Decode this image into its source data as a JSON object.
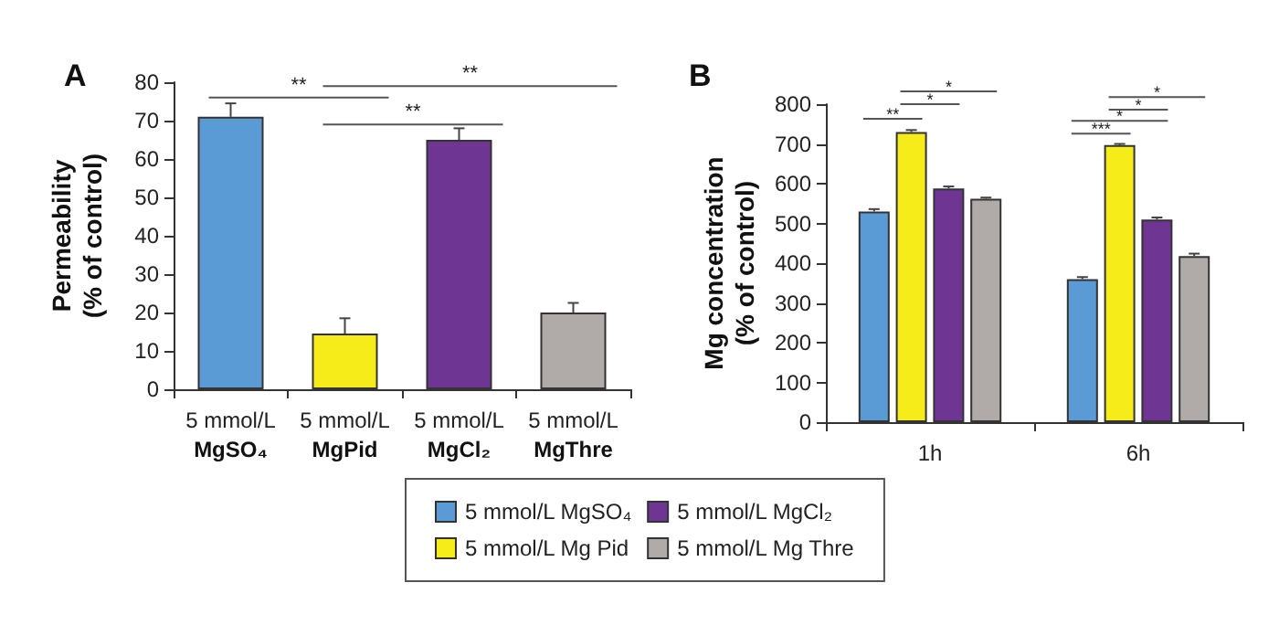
{
  "chart_data": [
    {
      "type": "bar",
      "title": "A",
      "ylabel": "Permeability\n(% of control)",
      "categories": [
        "5 mmol/L\nMgSO₄",
        "5 mmol/L\nMgPid",
        "5 mmol/L\nMgCl₂",
        "5 mmol/L\nMgThre"
      ],
      "values": [
        71,
        14.5,
        65,
        20
      ],
      "errors": [
        3.5,
        4,
        3,
        2.5
      ],
      "colors": [
        "#5b9bd5",
        "#f5ec1a",
        "#6f3593",
        "#b0aaa8"
      ],
      "ylim": [
        0,
        80
      ],
      "yticks": [
        0,
        10,
        20,
        30,
        40,
        50,
        60,
        70,
        80
      ],
      "grid": false,
      "annotations": [
        "**",
        "**",
        "**"
      ]
    },
    {
      "type": "bar",
      "title": "B",
      "ylabel": "Mg concentration\n(% of control)",
      "categories": [
        "1h",
        "6h"
      ],
      "series": [
        {
          "name": "5 mmol/L MgSO₄",
          "color": "#5b9bd5",
          "values": [
            530,
            360
          ],
          "errors": [
            6,
            5
          ]
        },
        {
          "name": "5 mmol/L Mg Pid",
          "color": "#f5ec1a",
          "values": [
            730,
            697
          ],
          "errors": [
            5,
            3
          ]
        },
        {
          "name": "5 mmol/L MgCl₂",
          "color": "#6f3593",
          "values": [
            588,
            510
          ],
          "errors": [
            5,
            5
          ]
        },
        {
          "name": "5 mmol/L Mg Thre",
          "color": "#b0aaa8",
          "values": [
            562,
            418
          ],
          "errors": [
            3,
            6
          ]
        }
      ],
      "ylim": [
        0,
        800
      ],
      "yticks": [
        0,
        100,
        200,
        300,
        400,
        500,
        600,
        700,
        800
      ],
      "grid": false,
      "legend": "bottom",
      "annotations": [
        "**",
        "*",
        "*",
        "***",
        "*",
        "*",
        "*"
      ]
    }
  ]
}
